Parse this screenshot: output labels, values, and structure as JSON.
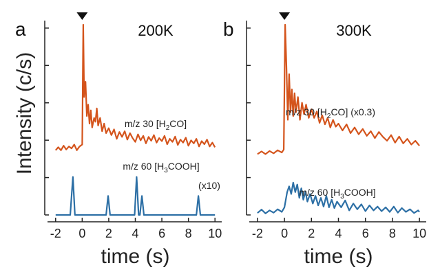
{
  "figure": {
    "ylabel": "Intensity (c/s)",
    "colors": {
      "h2co": "#d4541c",
      "hcooh": "#2c6fa5",
      "axis": "#222222"
    }
  },
  "chart_data": [
    {
      "type": "line",
      "panel": "a",
      "temperature": "200K",
      "xlabel": "time (s)",
      "xlim": [
        -2.3,
        10.3
      ],
      "xticks": [
        -2,
        0,
        2,
        4,
        6,
        8,
        10
      ],
      "xtick_labels": [
        "-2",
        "0",
        "2",
        "4",
        "6",
        "8",
        "10"
      ],
      "ylim": [
        0,
        5.2
      ],
      "yticks": [
        0,
        1,
        2,
        3,
        4,
        5
      ],
      "marker": {
        "symbol": "arrow-down-icon",
        "x": 0
      },
      "series": [
        {
          "key": "h2co",
          "label_parts": [
            "m/z 30 [H",
            "2",
            "CO]"
          ],
          "x": [
            -2.0,
            -1.8,
            -1.6,
            -1.4,
            -1.2,
            -1.0,
            -0.8,
            -0.6,
            -0.4,
            -0.2,
            0.0,
            0.08,
            0.15,
            0.25,
            0.35,
            0.45,
            0.55,
            0.65,
            0.75,
            0.9,
            1.0,
            1.1,
            1.2,
            1.35,
            1.5,
            1.65,
            1.8,
            2.0,
            2.2,
            2.4,
            2.6,
            2.8,
            3.0,
            3.2,
            3.4,
            3.6,
            3.8,
            4.0,
            4.2,
            4.4,
            4.6,
            4.8,
            5.0,
            5.2,
            5.4,
            5.6,
            5.8,
            6.0,
            6.2,
            6.4,
            6.6,
            6.8,
            7.0,
            7.2,
            7.4,
            7.6,
            7.8,
            8.0,
            8.2,
            8.4,
            8.6,
            8.8,
            9.0,
            9.2,
            9.4,
            9.6,
            9.8,
            10.0
          ],
          "y": [
            1.7,
            1.78,
            1.7,
            1.82,
            1.72,
            1.8,
            1.75,
            1.85,
            1.7,
            1.8,
            1.85,
            5.0,
            3.1,
            3.5,
            2.6,
            2.9,
            2.4,
            2.75,
            2.3,
            2.55,
            2.45,
            2.8,
            2.35,
            2.55,
            2.2,
            2.4,
            2.15,
            2.28,
            2.1,
            2.25,
            2.0,
            2.18,
            2.05,
            2.2,
            1.98,
            2.15,
            2.02,
            1.92,
            2.12,
            1.96,
            2.08,
            1.88,
            2.05,
            1.95,
            2.1,
            1.9,
            2.02,
            1.94,
            2.08,
            1.86,
            2.0,
            1.92,
            2.06,
            1.84,
            1.98,
            1.9,
            2.03,
            1.82,
            1.96,
            1.88,
            2.0,
            1.8,
            1.94,
            1.86,
            1.98,
            1.8,
            1.9,
            1.78
          ]
        },
        {
          "key": "hcooh",
          "label_parts": [
            "m/z 60 [H",
            "3",
            "COOH]"
          ],
          "label_extra": "(x10)",
          "x": [
            -2.0,
            -0.9,
            -0.7,
            -0.55,
            1.8,
            1.95,
            2.1,
            3.95,
            4.1,
            4.25,
            4.35,
            4.5,
            4.65,
            8.6,
            8.75,
            8.9,
            10.0
          ],
          "y": [
            0.0,
            0.0,
            1.0,
            0.0,
            0.0,
            0.5,
            0.0,
            0.0,
            1.0,
            0.0,
            0.0,
            0.5,
            0.0,
            0.0,
            0.5,
            0.0,
            0.0
          ]
        }
      ]
    },
    {
      "type": "line",
      "panel": "b",
      "temperature": "300K",
      "xlabel": "time (s)",
      "xlim": [
        -2.3,
        10.3
      ],
      "xticks": [
        -2,
        0,
        2,
        4,
        6,
        8,
        10
      ],
      "xtick_labels": [
        "-2",
        "0",
        "2",
        "4",
        "6",
        "8",
        "10"
      ],
      "ylim": [
        0,
        5.2
      ],
      "yticks": [
        0,
        1,
        2,
        3,
        4,
        5
      ],
      "marker": {
        "symbol": "arrow-down-icon",
        "x": 0
      },
      "series": [
        {
          "key": "h2co",
          "label_parts": [
            "m/z 30 [H",
            "2",
            "CO] (x0.3)"
          ],
          "x": [
            -2.0,
            -1.7,
            -1.4,
            -1.1,
            -0.8,
            -0.5,
            -0.2,
            -0.05,
            0.05,
            0.15,
            0.25,
            0.35,
            0.45,
            0.55,
            0.65,
            0.75,
            0.85,
            1.0,
            1.15,
            1.3,
            1.45,
            1.6,
            1.8,
            2.0,
            2.2,
            2.4,
            2.6,
            2.8,
            3.0,
            3.2,
            3.4,
            3.6,
            3.8,
            4.0,
            4.3,
            4.6,
            4.9,
            5.2,
            5.5,
            5.8,
            6.1,
            6.4,
            6.7,
            7.0,
            7.3,
            7.6,
            7.9,
            8.2,
            8.5,
            8.8,
            9.1,
            9.4,
            9.7,
            10.0
          ],
          "y": [
            1.6,
            1.67,
            1.6,
            1.68,
            1.62,
            1.7,
            1.64,
            1.72,
            5.0,
            3.9,
            2.5,
            3.7,
            2.7,
            3.3,
            2.6,
            3.2,
            2.7,
            3.1,
            2.5,
            2.95,
            2.65,
            2.9,
            2.55,
            2.78,
            2.55,
            2.72,
            2.42,
            2.62,
            2.38,
            2.55,
            2.3,
            2.5,
            2.32,
            2.4,
            2.22,
            2.38,
            2.15,
            2.3,
            2.12,
            2.26,
            2.08,
            2.2,
            2.02,
            2.18,
            2.05,
            1.95,
            2.1,
            1.9,
            2.06,
            1.88,
            2.0,
            1.85,
            1.95,
            1.82
          ]
        },
        {
          "key": "hcooh",
          "label_parts": [
            "m/z 60 [H",
            "3",
            "COOH]"
          ],
          "x": [
            -2.0,
            -1.7,
            -1.4,
            -1.1,
            -0.8,
            -0.5,
            -0.2,
            0.0,
            0.2,
            0.35,
            0.5,
            0.65,
            0.8,
            0.95,
            1.1,
            1.25,
            1.4,
            1.55,
            1.7,
            1.9,
            2.1,
            2.3,
            2.5,
            2.7,
            2.9,
            3.1,
            3.3,
            3.5,
            3.7,
            3.9,
            4.2,
            4.5,
            4.8,
            5.1,
            5.4,
            5.7,
            6.0,
            6.3,
            6.6,
            6.9,
            7.2,
            7.5,
            7.8,
            8.1,
            8.4,
            8.7,
            9.0,
            9.3,
            9.6,
            9.9,
            10.0
          ],
          "y": [
            0.05,
            0.14,
            0.04,
            0.12,
            0.06,
            0.15,
            0.08,
            0.2,
            0.6,
            0.75,
            0.55,
            0.85,
            0.6,
            0.8,
            0.45,
            0.7,
            0.4,
            0.62,
            0.35,
            0.55,
            0.3,
            0.5,
            0.25,
            0.45,
            0.22,
            0.5,
            0.2,
            0.4,
            0.18,
            0.35,
            0.2,
            0.38,
            0.12,
            0.3,
            0.15,
            0.28,
            0.1,
            0.25,
            0.12,
            0.22,
            0.1,
            0.2,
            0.08,
            0.22,
            0.06,
            0.18,
            0.08,
            0.15,
            0.05,
            0.12,
            0.08
          ]
        }
      ]
    }
  ]
}
